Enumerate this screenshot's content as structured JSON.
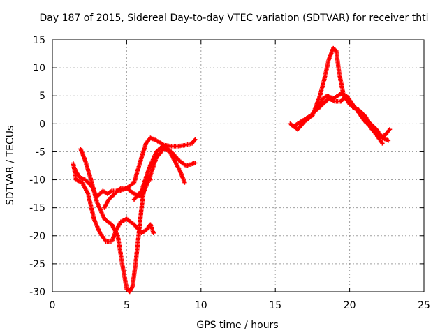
{
  "chart_data": {
    "type": "scatter",
    "title": "Day 187 of 2015, Sidereal Day-to-day VTEC variation (SDTVAR) for receiver thti",
    "xlabel": "GPS time / hours",
    "ylabel": "SDTVAR / TECUs",
    "xlim": [
      0,
      25
    ],
    "ylim": [
      -30,
      15
    ],
    "xticks": [
      0,
      5,
      10,
      15,
      20,
      25
    ],
    "yticks": [
      -30,
      -25,
      -20,
      -15,
      -10,
      -5,
      0,
      5,
      10,
      15
    ],
    "grid": true,
    "marker": "+",
    "color": "#ff0000",
    "series": [
      {
        "x": [
          1.5,
          1.8,
          2.2,
          2.6,
          3.0,
          3.4,
          3.7,
          4.0,
          4.5,
          5.0,
          5.5,
          6.0,
          6.3,
          6.6,
          7.0,
          7.5,
          8.0,
          8.5,
          9.0,
          9.4,
          9.6
        ],
        "y": [
          -8.0,
          -9.5,
          -10.0,
          -11.0,
          -13.0,
          -12.0,
          -12.5,
          -12.0,
          -12.0,
          -11.5,
          -10.5,
          -6.0,
          -3.5,
          -2.5,
          -3.0,
          -3.8,
          -4.0,
          -4.0,
          -3.8,
          -3.5,
          -2.8
        ]
      },
      {
        "x": [
          1.4,
          1.6,
          2.0,
          2.4,
          2.8,
          3.2,
          3.6,
          4.0,
          4.3,
          4.6,
          5.0,
          5.5,
          6.0,
          6.3,
          6.6,
          6.8
        ],
        "y": [
          -7.0,
          -10.0,
          -10.5,
          -12.5,
          -17.0,
          -19.5,
          -21.0,
          -21.0,
          -19.0,
          -17.5,
          -17.0,
          -18.0,
          -19.5,
          -19.0,
          -18.0,
          -19.5
        ]
      },
      {
        "x": [
          1.9,
          2.2,
          2.6,
          3.0,
          3.5,
          4.0,
          4.4,
          4.7,
          5.0,
          5.2,
          5.4,
          5.6,
          5.8,
          6.0,
          6.2,
          6.4,
          6.6
        ],
        "y": [
          -4.5,
          -6.5,
          -10.0,
          -14.0,
          -17.0,
          -18.0,
          -20.0,
          -25.0,
          -29.5,
          -30.0,
          -29.0,
          -25.0,
          -20.0,
          -15.0,
          -11.0,
          -9.5,
          -10.0
        ]
      },
      {
        "x": [
          3.5,
          3.8,
          4.2,
          4.6,
          5.0,
          5.5,
          6.0,
          6.5,
          7.0,
          7.5,
          8.0,
          8.5,
          9.0,
          9.6
        ],
        "y": [
          -15.0,
          -13.5,
          -12.5,
          -11.5,
          -11.5,
          -12.5,
          -13.0,
          -10.0,
          -6.0,
          -4.5,
          -5.0,
          -6.5,
          -7.5,
          -7.0
        ]
      },
      {
        "x": [
          5.5,
          6.0,
          6.5,
          7.0,
          7.4,
          7.8,
          8.2,
          8.6,
          8.9
        ],
        "y": [
          -13.5,
          -12.0,
          -8.0,
          -5.0,
          -4.0,
          -4.5,
          -6.5,
          -8.5,
          -10.5
        ]
      },
      {
        "x": [
          16.0,
          16.5,
          17.0,
          17.5,
          18.0,
          18.3,
          18.6,
          18.9,
          19.1,
          19.3,
          19.6,
          20.0,
          20.5,
          21.0,
          21.5,
          22.0,
          22.4,
          22.7
        ],
        "y": [
          0.0,
          -1.0,
          0.5,
          1.5,
          5.0,
          8.0,
          11.5,
          13.5,
          13.0,
          9.0,
          5.0,
          3.5,
          2.5,
          1.0,
          -1.0,
          -2.5,
          -2.0,
          -1.0
        ]
      },
      {
        "x": [
          16.2,
          16.8,
          17.4,
          17.9,
          18.2,
          18.5,
          18.9,
          19.2,
          19.5,
          19.8,
          20.2,
          20.6,
          21.0,
          21.4,
          21.8,
          22.2,
          22.6
        ],
        "y": [
          -0.5,
          0.5,
          1.5,
          3.0,
          4.5,
          5.0,
          4.5,
          5.0,
          5.5,
          4.5,
          3.0,
          2.5,
          1.5,
          0.0,
          -1.0,
          -2.5,
          -3.0
        ]
      },
      {
        "x": [
          17.8,
          18.2,
          18.6,
          19.0,
          19.4,
          19.8,
          20.2,
          20.6,
          21.0,
          21.4,
          21.8,
          22.2
        ],
        "y": [
          2.5,
          3.5,
          4.5,
          4.0,
          4.0,
          5.0,
          3.5,
          2.0,
          0.5,
          -0.5,
          -2.0,
          -3.5
        ]
      }
    ]
  }
}
